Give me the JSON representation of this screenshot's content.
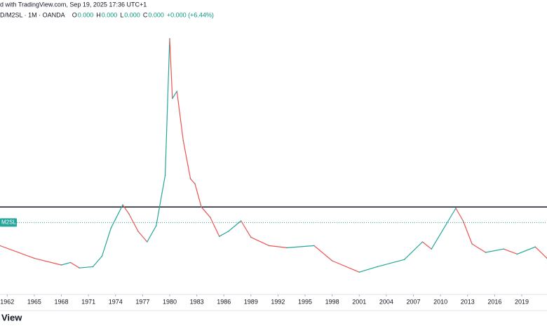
{
  "chart_data": {
    "type": "line",
    "header": "d with TradingView.com, Sep 19, 2025 17:36 UTC+1",
    "symbol": "D/M2SL · 1M · OANDA",
    "ohlc": [
      {
        "key": "O",
        "text": "0.000"
      },
      {
        "key": "H",
        "text": "0.000"
      },
      {
        "key": "L",
        "text": "0.000"
      },
      {
        "key": "C",
        "text": "0.000"
      }
    ],
    "change": "+0.000 (+6.44%)",
    "line_label": "M2SL",
    "footer": "View",
    "x": [
      1961.2,
      1965,
      1968,
      1969,
      1970,
      1971.5,
      1972.5,
      1973.5,
      1974.8,
      1975.5,
      1976.5,
      1977.5,
      1978.5,
      1979.5,
      1980.0,
      1980.3,
      1980.8,
      1981.5,
      1982.3,
      1982.8,
      1983.5,
      1984.5,
      1985.5,
      1986.5,
      1987.9,
      1989,
      1991,
      1993,
      1996,
      1998,
      2001,
      2003,
      2006,
      2008,
      2009,
      2011.7,
      2012.5,
      2013.5,
      2015,
      2017,
      2018.5,
      2020.5,
      2021.8
    ],
    "series": [
      {
        "color": "#26a69a",
        "down_color": "#ef5350",
        "values": [
          0.083,
          0.053,
          0.037,
          0.043,
          0.03,
          0.033,
          0.058,
          0.125,
          0.18,
          0.158,
          0.117,
          0.092,
          0.13,
          0.25,
          0.575,
          0.433,
          0.45,
          0.333,
          0.242,
          0.23,
          0.175,
          0.15,
          0.105,
          0.117,
          0.142,
          0.103,
          0.083,
          0.078,
          0.083,
          0.047,
          0.02,
          0.033,
          0.05,
          0.092,
          0.075,
          0.172,
          0.142,
          0.087,
          0.067,
          0.075,
          0.063,
          0.08,
          0.053
        ]
      }
    ],
    "hline": 0.175,
    "last_line": 0.138,
    "xlim": [
      1961.2,
      2021.8
    ],
    "ylim": [
      -0.033,
      0.667
    ],
    "xticks": [
      1962,
      1965,
      1968,
      1971,
      1974,
      1977,
      1980,
      1983,
      1986,
      1989,
      1992,
      1995,
      1998,
      2001,
      2004,
      2007,
      2010,
      2013,
      2016,
      2019
    ]
  }
}
